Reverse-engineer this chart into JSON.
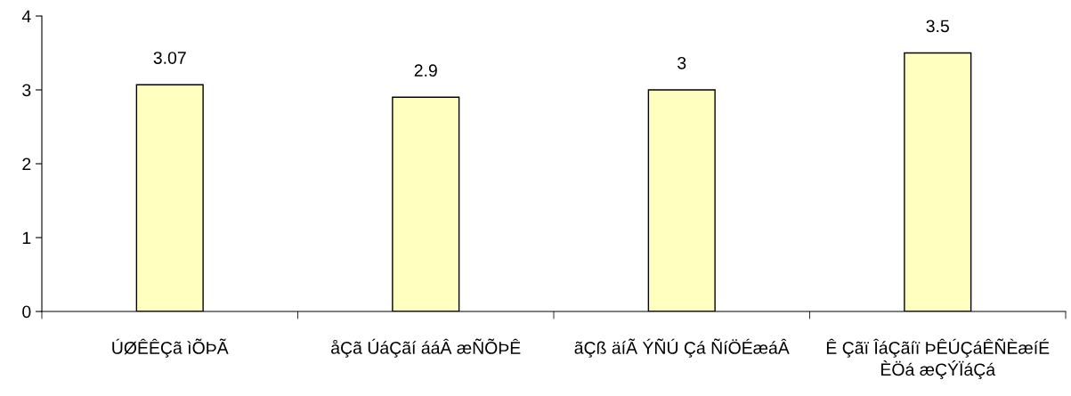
{
  "chart_data": {
    "type": "bar",
    "categories": [
      "ÚØÊÊÇã ìÕÞÃ",
      "åÇã ÚáÇãí ááÂ æÑÕÞÊ",
      "ãÇß äíÃ ÝÑÚ Çá ÑíÖÉæáÂ",
      "Ê Çãï ÎáÇãíï ÞÊÚÇáÊÑÈæíÉ\nÈÖá æÇÝÏáÇá"
    ],
    "values": [
      3.07,
      2.9,
      3,
      3.5
    ],
    "color": "#ffffc0",
    "ylim": [
      0,
      4
    ],
    "yticks": [
      0,
      1,
      2,
      3,
      4
    ],
    "data_labels": true,
    "grid": false,
    "legend": false
  }
}
